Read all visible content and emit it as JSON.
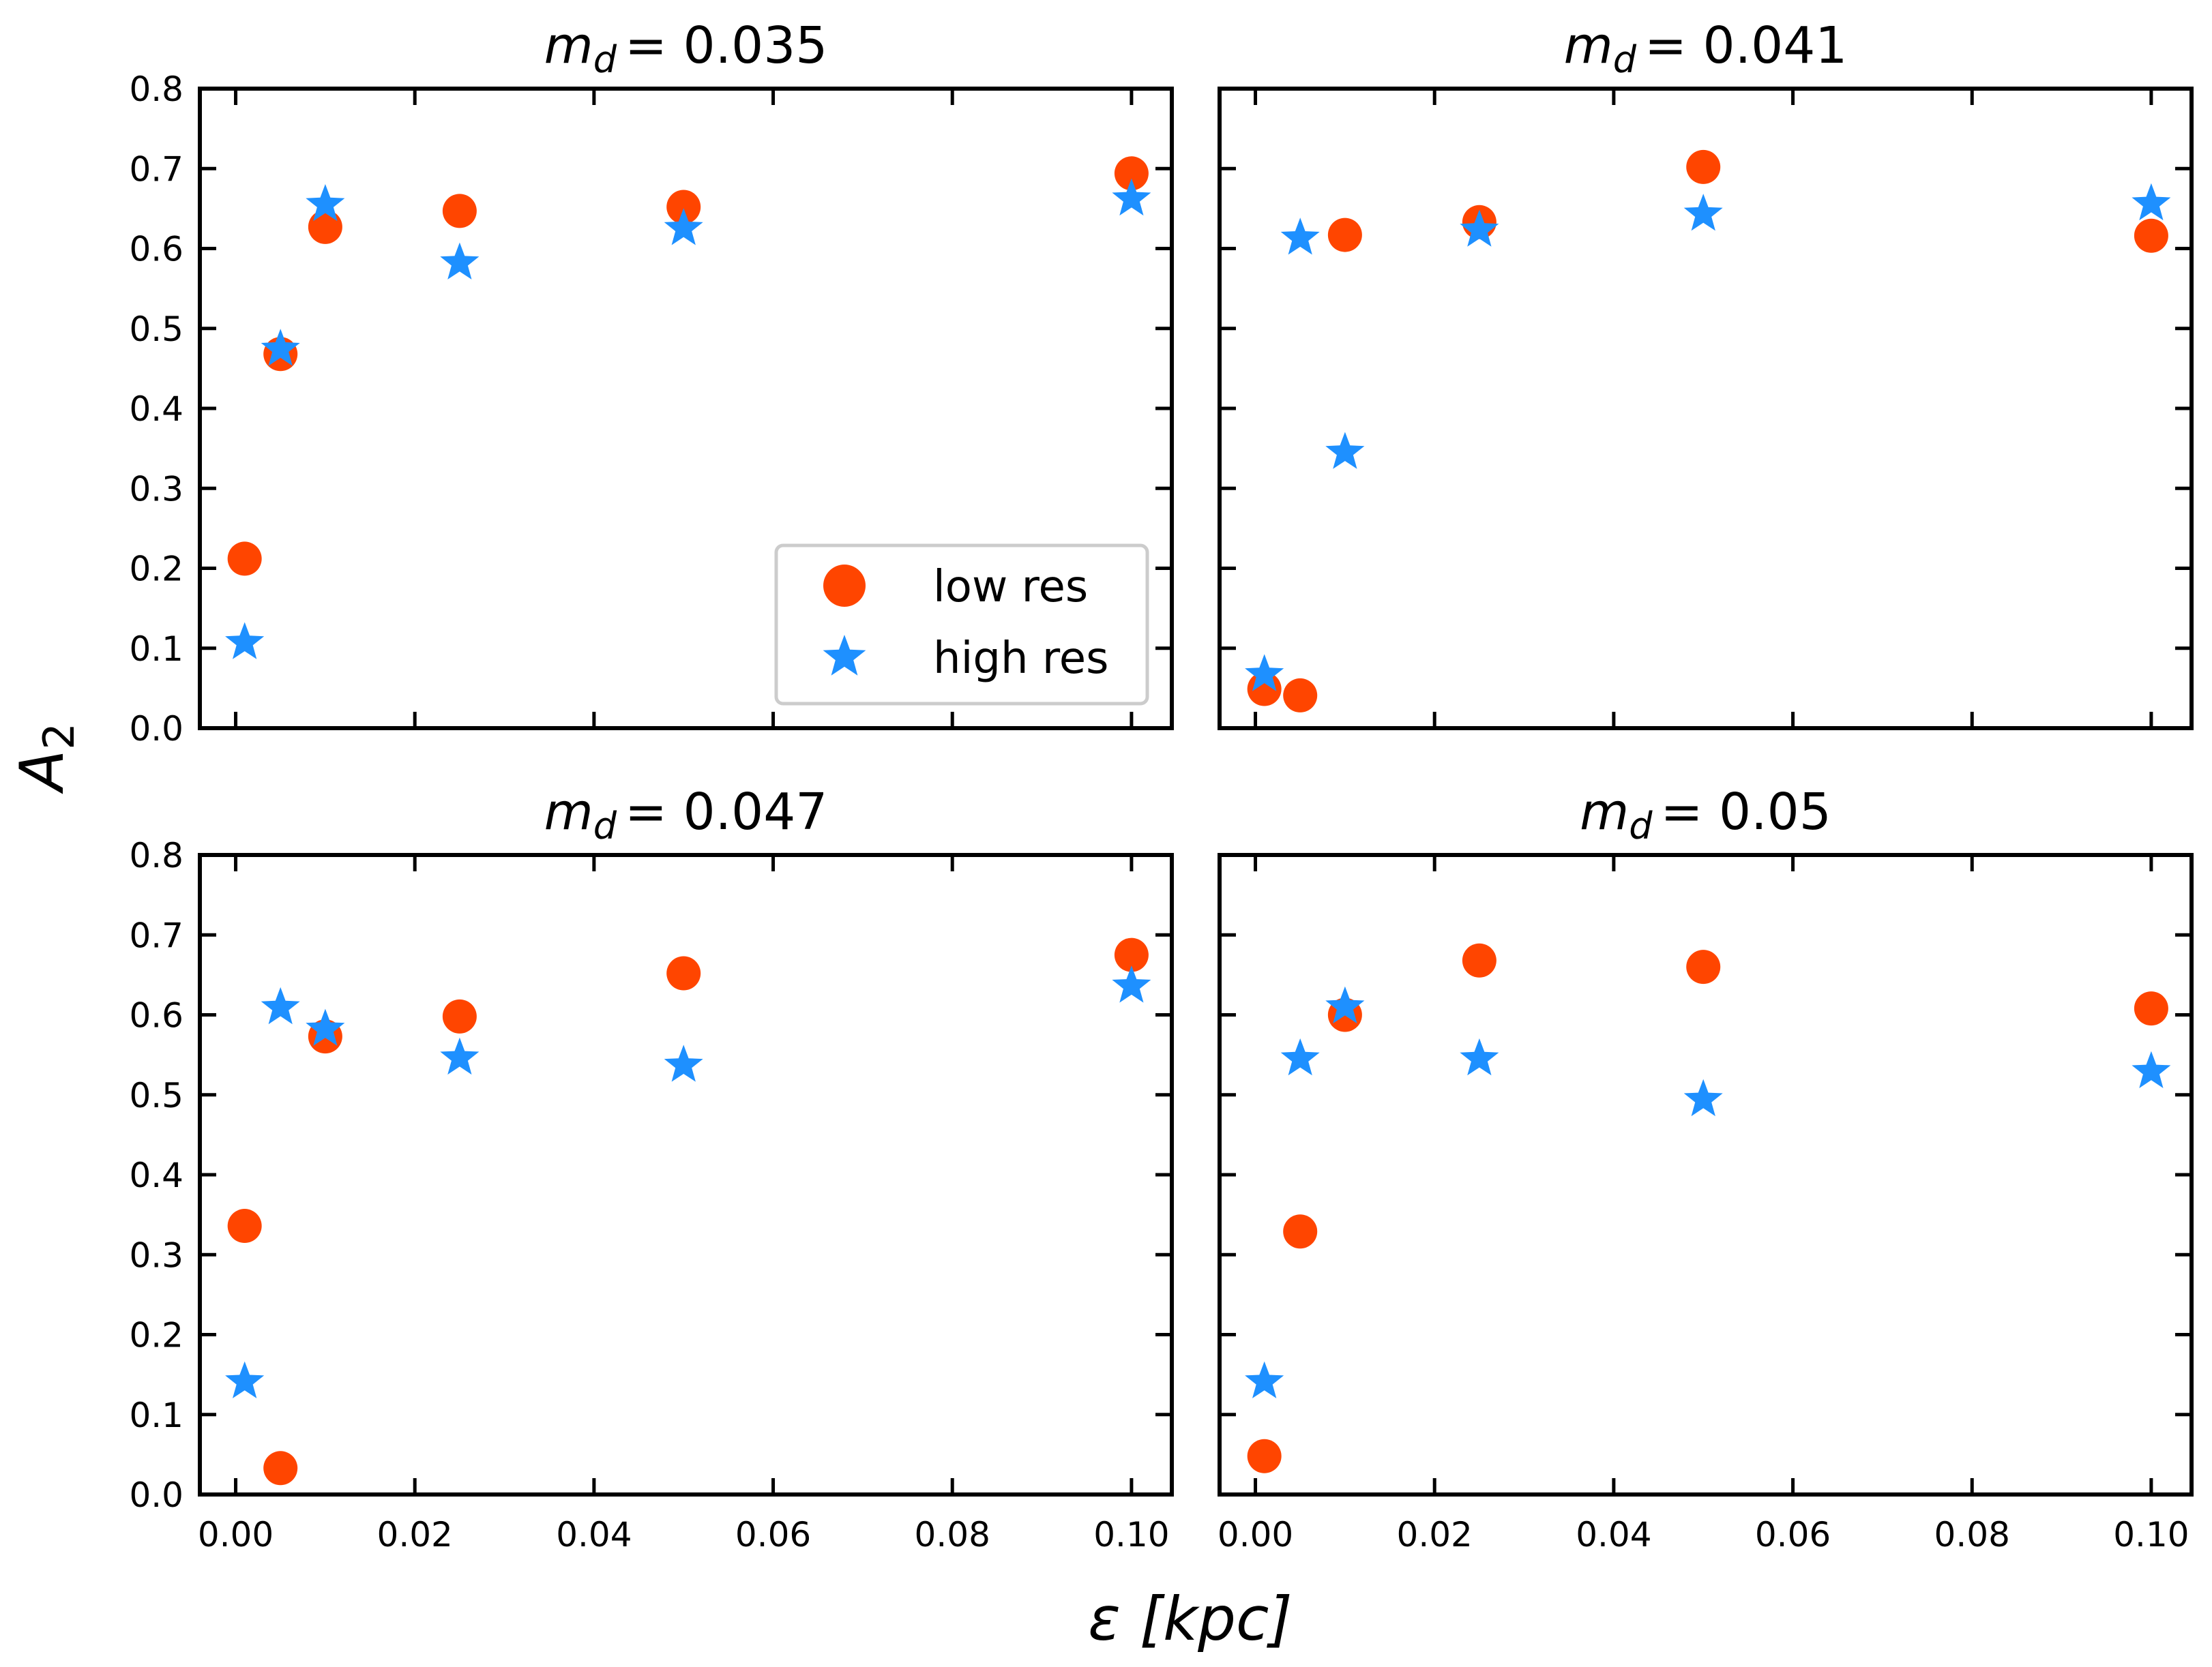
{
  "figure": {
    "xlabel": "ε [kpc]",
    "ylabel": "A",
    "ylabel_sub": "2",
    "legend": {
      "placement": "lower-right",
      "panel": 0,
      "low_label": "low res",
      "high_label": "high res"
    },
    "colors": {
      "low": "#ff4500",
      "high": "#1e90ff"
    }
  },
  "chart_data": [
    {
      "type": "scatter",
      "title_prefix": "m",
      "title_sub": "d",
      "title_value": "= 0.035",
      "xlim": [
        -0.004,
        0.1045
      ],
      "ylim": [
        0,
        0.8
      ],
      "xticks": [
        0.0,
        0.02,
        0.04,
        0.06,
        0.08,
        0.1
      ],
      "yticks": [
        0.0,
        0.1,
        0.2,
        0.3,
        0.4,
        0.5,
        0.6,
        0.7,
        0.8
      ],
      "series": [
        {
          "name": "low res",
          "marker": "circle",
          "x": [
            0.001,
            0.005,
            0.01,
            0.025,
            0.05,
            0.1
          ],
          "y": [
            0.212,
            0.468,
            0.627,
            0.647,
            0.652,
            0.694
          ]
        },
        {
          "name": "high res",
          "marker": "star",
          "x": [
            0.001,
            0.005,
            0.01,
            0.025,
            0.05,
            0.1
          ],
          "y": [
            0.107,
            0.474,
            0.655,
            0.582,
            0.625,
            0.662
          ]
        }
      ]
    },
    {
      "type": "scatter",
      "title_prefix": "m",
      "title_sub": "d",
      "title_value": "= 0.041",
      "xlim": [
        -0.004,
        0.1045
      ],
      "ylim": [
        0,
        0.8
      ],
      "xticks": [
        0.0,
        0.02,
        0.04,
        0.06,
        0.08,
        0.1
      ],
      "yticks": [
        0.0,
        0.1,
        0.2,
        0.3,
        0.4,
        0.5,
        0.6,
        0.7,
        0.8
      ],
      "series": [
        {
          "name": "low res",
          "marker": "circle",
          "x": [
            0.001,
            0.005,
            0.01,
            0.025,
            0.05,
            0.1
          ],
          "y": [
            0.049,
            0.041,
            0.617,
            0.633,
            0.702,
            0.616
          ]
        },
        {
          "name": "high res",
          "marker": "star",
          "x": [
            0.001,
            0.005,
            0.01,
            0.025,
            0.05,
            0.1
          ],
          "y": [
            0.067,
            0.613,
            0.345,
            0.623,
            0.643,
            0.656
          ]
        }
      ]
    },
    {
      "type": "scatter",
      "title_prefix": "m",
      "title_sub": "d",
      "title_value": "= 0.047",
      "xlim": [
        -0.004,
        0.1045
      ],
      "ylim": [
        0,
        0.8
      ],
      "xticks": [
        0.0,
        0.02,
        0.04,
        0.06,
        0.08,
        0.1
      ],
      "yticks": [
        0.0,
        0.1,
        0.2,
        0.3,
        0.4,
        0.5,
        0.6,
        0.7,
        0.8
      ],
      "series": [
        {
          "name": "low res",
          "marker": "circle",
          "x": [
            0.001,
            0.005,
            0.01,
            0.025,
            0.05,
            0.1
          ],
          "y": [
            0.336,
            0.033,
            0.573,
            0.598,
            0.652,
            0.675
          ]
        },
        {
          "name": "high res",
          "marker": "star",
          "x": [
            0.001,
            0.005,
            0.01,
            0.025,
            0.05,
            0.1
          ],
          "y": [
            0.141,
            0.609,
            0.582,
            0.546,
            0.537,
            0.636
          ]
        }
      ]
    },
    {
      "type": "scatter",
      "title_prefix": "m",
      "title_sub": "d",
      "title_value": "= 0.05",
      "xlim": [
        -0.004,
        0.1045
      ],
      "ylim": [
        0,
        0.8
      ],
      "xticks": [
        0.0,
        0.02,
        0.04,
        0.06,
        0.08,
        0.1
      ],
      "yticks": [
        0.0,
        0.1,
        0.2,
        0.3,
        0.4,
        0.5,
        0.6,
        0.7,
        0.8
      ],
      "series": [
        {
          "name": "low res",
          "marker": "circle",
          "x": [
            0.001,
            0.005,
            0.01,
            0.025,
            0.05,
            0.1
          ],
          "y": [
            0.048,
            0.329,
            0.6,
            0.668,
            0.66,
            0.608
          ]
        },
        {
          "name": "high res",
          "marker": "star",
          "x": [
            0.001,
            0.005,
            0.01,
            0.025,
            0.05,
            0.1
          ],
          "y": [
            0.141,
            0.545,
            0.61,
            0.545,
            0.494,
            0.529
          ]
        }
      ]
    }
  ]
}
